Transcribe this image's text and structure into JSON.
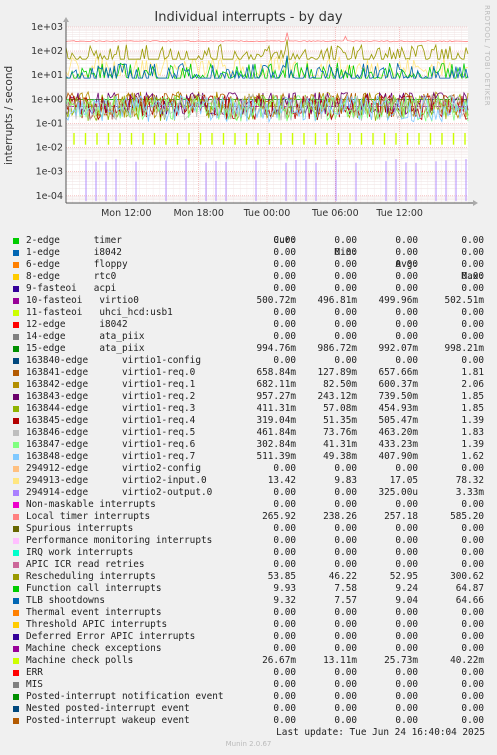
{
  "chart_data": {
    "type": "line",
    "title": "Individual interrupts - by day",
    "ylabel": "interrupts / second",
    "y_scale": "log",
    "ylim": [
      5e-05,
      1000
    ],
    "y_ticks": [
      "1e-04",
      "1e-03",
      "1e-02",
      "1e-01",
      "1e+00",
      "1e+01",
      "1e+02",
      "1e+03"
    ],
    "x_ticks": [
      "Mon 12:00",
      "Mon 18:00",
      "Tue 00:00",
      "Tue 06:00",
      "Tue 12:00"
    ],
    "grid": true,
    "legend_placement": "below",
    "headers": {
      "cur": "Cur:",
      "min": "Min:",
      "avg": "Avg:",
      "max": "Max:"
    },
    "series": [
      {
        "name": "2-edge      timer",
        "color": "#00cc00",
        "cur": "0.00",
        "min": "0.00",
        "avg": "0.00",
        "max": "0.00"
      },
      {
        "name": "1-edge      i8042",
        "color": "#0066b3",
        "cur": "0.00",
        "min": "0.00",
        "avg": "0.00",
        "max": "0.00"
      },
      {
        "name": "6-edge      floppy",
        "color": "#ff8000",
        "cur": "0.00",
        "min": "0.00",
        "avg": "0.00",
        "max": "0.00"
      },
      {
        "name": "8-edge      rtc0",
        "color": "#ffcc00",
        "cur": "0.00",
        "min": "0.00",
        "avg": "0.00",
        "max": "0.00"
      },
      {
        "name": "9-fasteoi   acpi",
        "color": "#330099",
        "cur": "0.00",
        "min": "0.00",
        "avg": "0.00",
        "max": "0.00"
      },
      {
        "name": "10-fasteoi   virtio0",
        "color": "#990099",
        "cur": "500.72m",
        "min": "496.81m",
        "avg": "499.96m",
        "max": "502.51m"
      },
      {
        "name": "11-fasteoi   uhci_hcd:usb1",
        "color": "#ccff00",
        "cur": "0.00",
        "min": "0.00",
        "avg": "0.00",
        "max": "0.00"
      },
      {
        "name": "12-edge      i8042",
        "color": "#ff0000",
        "cur": "0.00",
        "min": "0.00",
        "avg": "0.00",
        "max": "0.00"
      },
      {
        "name": "14-edge      ata_piix",
        "color": "#808080",
        "cur": "0.00",
        "min": "0.00",
        "avg": "0.00",
        "max": "0.00"
      },
      {
        "name": "15-edge      ata_piix",
        "color": "#008f00",
        "cur": "994.76m",
        "min": "986.72m",
        "avg": "992.07m",
        "max": "998.21m"
      },
      {
        "name": "163840-edge      virtio1-config",
        "color": "#00487d",
        "cur": "0.00",
        "min": "0.00",
        "avg": "0.00",
        "max": "0.00"
      },
      {
        "name": "163841-edge      virtio1-req.0",
        "color": "#b35a00",
        "cur": "658.84m",
        "min": "127.89m",
        "avg": "657.66m",
        "max": "1.81"
      },
      {
        "name": "163842-edge      virtio1-req.1",
        "color": "#b38f00",
        "cur": "682.11m",
        "min": "82.50m",
        "avg": "600.37m",
        "max": "2.06"
      },
      {
        "name": "163843-edge      virtio1-req.2",
        "color": "#6b006b",
        "cur": "957.27m",
        "min": "243.12m",
        "avg": "739.50m",
        "max": "1.85"
      },
      {
        "name": "163844-edge      virtio1-req.3",
        "color": "#8fb300",
        "cur": "411.31m",
        "min": "57.08m",
        "avg": "454.93m",
        "max": "1.85"
      },
      {
        "name": "163845-edge      virtio1-req.4",
        "color": "#b30000",
        "cur": "319.04m",
        "min": "51.35m",
        "avg": "505.47m",
        "max": "1.39"
      },
      {
        "name": "163846-edge      virtio1-req.5",
        "color": "#bebebe",
        "cur": "461.84m",
        "min": "73.76m",
        "avg": "463.20m",
        "max": "1.83"
      },
      {
        "name": "163847-edge      virtio1-req.6",
        "color": "#80ff80",
        "cur": "302.84m",
        "min": "41.31m",
        "avg": "433.23m",
        "max": "1.39"
      },
      {
        "name": "163848-edge      virtio1-req.7",
        "color": "#80c9ff",
        "cur": "511.39m",
        "min": "49.38m",
        "avg": "407.90m",
        "max": "1.62"
      },
      {
        "name": "294912-edge      virtio2-config",
        "color": "#ffc080",
        "cur": "0.00",
        "min": "0.00",
        "avg": "0.00",
        "max": "0.00"
      },
      {
        "name": "294913-edge      virtio2-input.0",
        "color": "#ffe680",
        "cur": "13.42",
        "min": "9.83",
        "avg": "17.05",
        "max": "78.32"
      },
      {
        "name": "294914-edge      virtio2-output.0",
        "color": "#aa80ff",
        "cur": "0.00",
        "min": "0.00",
        "avg": "325.00u",
        "max": "3.33m"
      },
      {
        "name": "Non-maskable interrupts",
        "color": "#ee00cc",
        "cur": "0.00",
        "min": "0.00",
        "avg": "0.00",
        "max": "0.00"
      },
      {
        "name": "Local timer interrupts",
        "color": "#ff8080",
        "cur": "265.92",
        "min": "238.26",
        "avg": "257.18",
        "max": "585.20"
      },
      {
        "name": "Spurious interrupts",
        "color": "#666600",
        "cur": "0.00",
        "min": "0.00",
        "avg": "0.00",
        "max": "0.00"
      },
      {
        "name": "Performance monitoring interrupts",
        "color": "#ffbfff",
        "cur": "0.00",
        "min": "0.00",
        "avg": "0.00",
        "max": "0.00"
      },
      {
        "name": "IRQ work interrupts",
        "color": "#00ffcc",
        "cur": "0.00",
        "min": "0.00",
        "avg": "0.00",
        "max": "0.00"
      },
      {
        "name": "APIC ICR read retries",
        "color": "#cc6699",
        "cur": "0.00",
        "min": "0.00",
        "avg": "0.00",
        "max": "0.00"
      },
      {
        "name": "Rescheduling interrupts",
        "color": "#999900",
        "cur": "53.85",
        "min": "46.22",
        "avg": "52.95",
        "max": "300.62"
      },
      {
        "name": "Function call interrupts",
        "color": "#00cc00",
        "cur": "9.93",
        "min": "7.58",
        "avg": "9.24",
        "max": "64.87"
      },
      {
        "name": "TLB shootdowns",
        "color": "#0066b3",
        "cur": "9.32",
        "min": "7.57",
        "avg": "9.04",
        "max": "64.66"
      },
      {
        "name": "Thermal event interrupts",
        "color": "#ff8000",
        "cur": "0.00",
        "min": "0.00",
        "avg": "0.00",
        "max": "0.00"
      },
      {
        "name": "Threshold APIC interrupts",
        "color": "#ffcc00",
        "cur": "0.00",
        "min": "0.00",
        "avg": "0.00",
        "max": "0.00"
      },
      {
        "name": "Deferred Error APIC interrupts",
        "color": "#330099",
        "cur": "0.00",
        "min": "0.00",
        "avg": "0.00",
        "max": "0.00"
      },
      {
        "name": "Machine check exceptions",
        "color": "#990099",
        "cur": "0.00",
        "min": "0.00",
        "avg": "0.00",
        "max": "0.00"
      },
      {
        "name": "Machine check polls",
        "color": "#ccff00",
        "cur": "26.67m",
        "min": "13.11m",
        "avg": "25.73m",
        "max": "40.22m"
      },
      {
        "name": "ERR",
        "color": "#ff0000",
        "cur": "0.00",
        "min": "0.00",
        "avg": "0.00",
        "max": "0.00"
      },
      {
        "name": "MIS",
        "color": "#808080",
        "cur": "0.00",
        "min": "0.00",
        "avg": "0.00",
        "max": "0.00"
      },
      {
        "name": "Posted-interrupt notification event",
        "color": "#008f00",
        "cur": "0.00",
        "min": "0.00",
        "avg": "0.00",
        "max": "0.00"
      },
      {
        "name": "Nested posted-interrupt event",
        "color": "#00487d",
        "cur": "0.00",
        "min": "0.00",
        "avg": "0.00",
        "max": "0.00"
      },
      {
        "name": "Posted-interrupt wakeup event",
        "color": "#b35a00",
        "cur": "0.00",
        "min": "0.00",
        "avg": "0.00",
        "max": "0.00"
      }
    ]
  },
  "side_text": "RRDTOOL / TOBI OETIKER",
  "footer": "Last update: Tue Jun 24 16:40:04 2025",
  "version": "Munin 2.0.67"
}
